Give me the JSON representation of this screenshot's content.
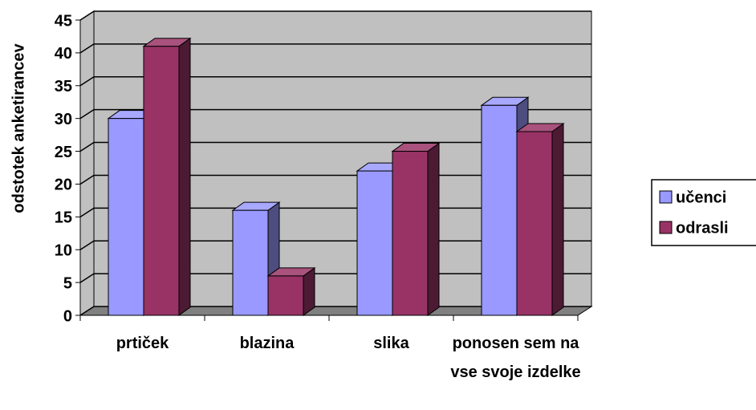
{
  "chart_data": {
    "type": "bar3d",
    "y_label": "odstotek anketirancev",
    "categories": [
      "prtiček",
      "blazina",
      "slika",
      "ponosen sem na vse svoje izdelke"
    ],
    "series": [
      {
        "name": "učenci",
        "color": "#9999ff",
        "values": [
          30,
          16,
          22,
          32
        ]
      },
      {
        "name": "odrasli",
        "color": "#993366",
        "values": [
          41,
          6,
          25,
          28
        ]
      }
    ],
    "ylim": [
      0,
      45
    ],
    "yticks": [
      0,
      5,
      10,
      15,
      20,
      25,
      30,
      35,
      40,
      45
    ],
    "grid": true,
    "legend": "right"
  }
}
